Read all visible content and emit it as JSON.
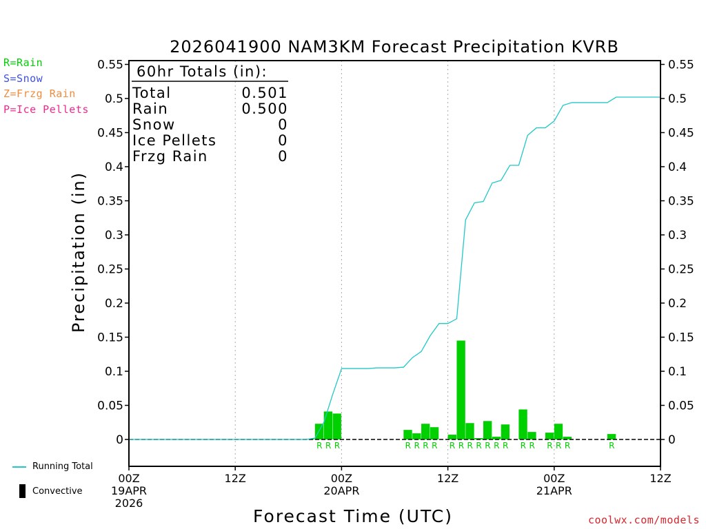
{
  "colors": {
    "rain": "#00d000",
    "snow": "#3c50e6",
    "frzg_rain": "#f08c3c",
    "ice_pellets": "#f0288c",
    "running_total": "#20c8c8",
    "credit": "#d8242c"
  },
  "type_legend": [
    {
      "label": "R=Rain",
      "color_key": "rain"
    },
    {
      "label": "S=Snow",
      "color_key": "snow"
    },
    {
      "label": "Z=Frzg Rain",
      "color_key": "frzg_rain"
    },
    {
      "label": "P=Ice Pellets",
      "color_key": "ice_pellets"
    }
  ],
  "series_legend": {
    "running_total": "Running Total",
    "convective": "Convective"
  },
  "credit": "coolwx.com/models",
  "chart_data": {
    "type": "bar",
    "title": "2026041900 NAM3KM Forecast Precipitation KVRB",
    "xlabel": "Forecast Time (UTC)",
    "ylabel": "Precipitation (in)",
    "xlim": [
      0,
      60
    ],
    "ylim": [
      -0.04,
      0.55
    ],
    "y_ticks": [
      0,
      0.05,
      0.1,
      0.15,
      0.2,
      0.25,
      0.3,
      0.35,
      0.4,
      0.45,
      0.5,
      0.55
    ],
    "y_tick_labels": [
      "0",
      "0.05",
      "0.1",
      "0.15",
      "0.2",
      "0.25",
      "0.3",
      "0.35",
      "0.4",
      "0.45",
      "0.5",
      "0.55"
    ],
    "x_ticks": [
      {
        "hour": 0,
        "lines": [
          "00Z",
          "19APR",
          "2026"
        ]
      },
      {
        "hour": 12,
        "lines": [
          "12Z"
        ]
      },
      {
        "hour": 24,
        "lines": [
          "00Z",
          "20APR"
        ]
      },
      {
        "hour": 36,
        "lines": [
          "12Z"
        ]
      },
      {
        "hour": 48,
        "lines": [
          "00Z",
          "21APR"
        ]
      },
      {
        "hour": 60,
        "lines": [
          "12Z"
        ]
      }
    ],
    "grid_hours": [
      12,
      24,
      36,
      48
    ],
    "totals_box": {
      "heading": "60hr Totals (in):",
      "rows": [
        {
          "label": "Total",
          "value": "0.501"
        },
        {
          "label": "Rain",
          "value": "0.500"
        },
        {
          "label": "Snow",
          "value": "0"
        },
        {
          "label": "Ice Pellets",
          "value": "0"
        },
        {
          "label": "Frzg Rain",
          "value": "0"
        }
      ]
    },
    "bars": [
      {
        "hour": 21,
        "value": 0.001,
        "type": "R"
      },
      {
        "hour": 22,
        "value": 0.023,
        "type": "R"
      },
      {
        "hour": 23,
        "value": 0.041,
        "type": "R"
      },
      {
        "hour": 24,
        "value": 0.038,
        "type": "R"
      },
      {
        "hour": 32,
        "value": 0.014,
        "type": "R"
      },
      {
        "hour": 33,
        "value": 0.009,
        "type": "R"
      },
      {
        "hour": 34,
        "value": 0.023,
        "type": "R"
      },
      {
        "hour": 35,
        "value": 0.018,
        "type": "R"
      },
      {
        "hour": 37,
        "value": 0.007,
        "type": "R"
      },
      {
        "hour": 38,
        "value": 0.145,
        "type": "R"
      },
      {
        "hour": 39,
        "value": 0.024,
        "type": "R"
      },
      {
        "hour": 40,
        "value": 0.002,
        "type": "R"
      },
      {
        "hour": 41,
        "value": 0.027,
        "type": "R"
      },
      {
        "hour": 42,
        "value": 0.004,
        "type": "R"
      },
      {
        "hour": 43,
        "value": 0.022,
        "type": "R"
      },
      {
        "hour": 45,
        "value": 0.044,
        "type": "R"
      },
      {
        "hour": 46,
        "value": 0.011,
        "type": "R"
      },
      {
        "hour": 48,
        "value": 0.01,
        "type": "R"
      },
      {
        "hour": 49,
        "value": 0.023,
        "type": "R"
      },
      {
        "hour": 50,
        "value": 0.004,
        "type": "R"
      },
      {
        "hour": 55,
        "value": 0.008,
        "type": "R"
      }
    ],
    "running_total": {
      "hours": [
        0,
        20,
        21,
        22,
        23,
        24,
        25,
        26,
        27,
        28,
        29,
        30,
        31,
        32,
        33,
        34,
        35,
        36,
        37,
        38,
        39,
        40,
        41,
        42,
        43,
        44,
        45,
        46,
        47,
        48,
        49,
        50,
        51,
        52,
        53,
        54,
        55,
        56,
        57,
        58,
        59,
        60
      ],
      "values": [
        0,
        0,
        0.002,
        0.025,
        0.066,
        0.104,
        0.104,
        0.104,
        0.104,
        0.105,
        0.105,
        0.105,
        0.106,
        0.12,
        0.129,
        0.152,
        0.17,
        0.17,
        0.177,
        0.322,
        0.347,
        0.349,
        0.376,
        0.38,
        0.402,
        0.402,
        0.446,
        0.457,
        0.457,
        0.467,
        0.49,
        0.494,
        0.494,
        0.494,
        0.494,
        0.494,
        0.502,
        0.502,
        0.502,
        0.502,
        0.502,
        0.502
      ]
    }
  }
}
